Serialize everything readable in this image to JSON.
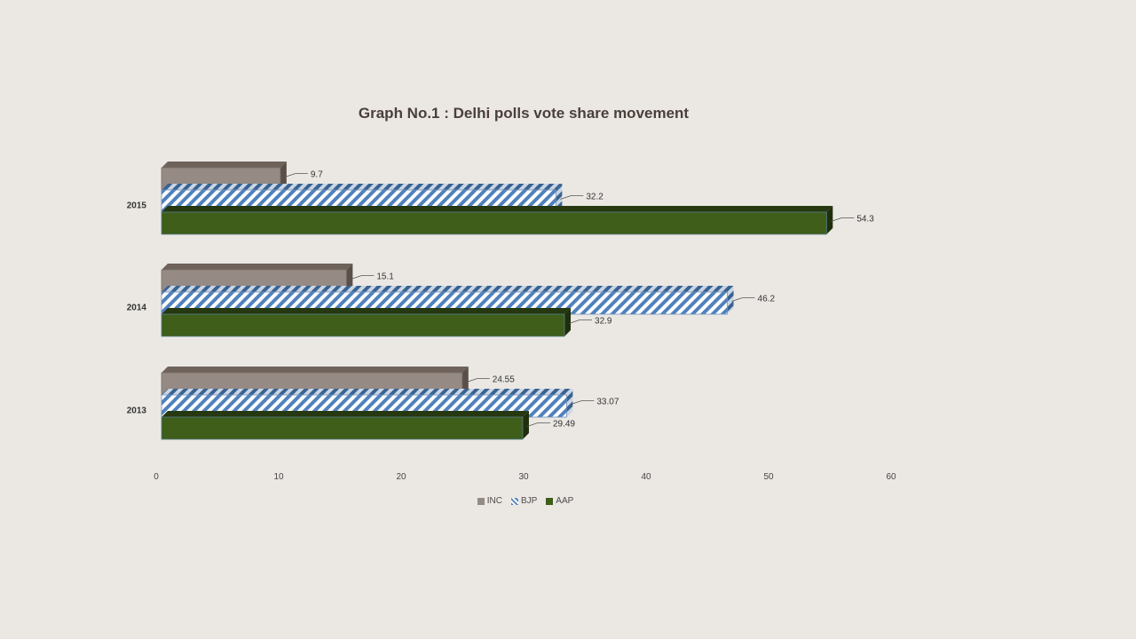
{
  "chart_data": {
    "type": "bar",
    "orientation": "horizontal",
    "title": "Graph No.1 : Delhi polls vote share movement",
    "categories": [
      "2015",
      "2014",
      "2013"
    ],
    "series": [
      {
        "name": "INC",
        "values": [
          9.7,
          15.1,
          24.55
        ],
        "labels": [
          "9.7",
          "15.1",
          "24.55"
        ],
        "color": "#958a84"
      },
      {
        "name": "BJP",
        "values": [
          32.2,
          46.2,
          33.07
        ],
        "labels": [
          "32.2",
          "46.2",
          "33.07"
        ],
        "color": "#4f81bd"
      },
      {
        "name": "AAP",
        "values": [
          54.3,
          32.9,
          29.49
        ],
        "labels": [
          "54.3",
          "32.9",
          "29.49"
        ],
        "color": "#3e5e1a"
      }
    ],
    "xticks": [
      "0",
      "10",
      "20",
      "30",
      "40",
      "50",
      "60"
    ],
    "xlim": [
      0,
      60
    ],
    "legend_position": "bottom",
    "grid": false
  }
}
